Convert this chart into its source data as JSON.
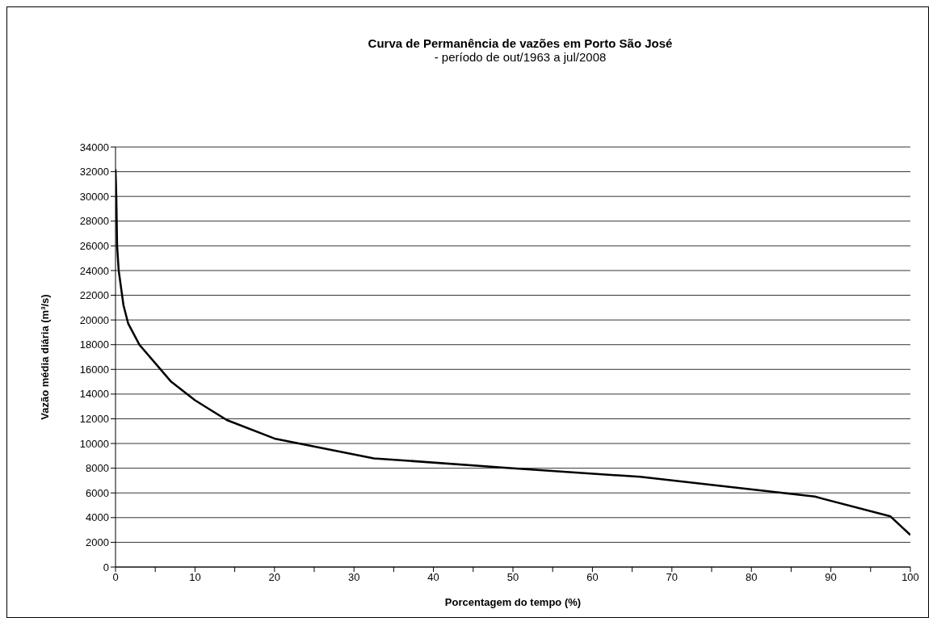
{
  "chart_data": {
    "type": "line",
    "title": "Curva de Permanência de vazões em Porto São José",
    "subtitle": "- período de out/1963 a jul/2008",
    "xlabel": "Porcentagem do tempo (%)",
    "ylabel": "Vazão média diária (m³/s)",
    "series": [
      {
        "color": "#000000",
        "x": [
          0,
          0.1,
          0.2,
          0.4,
          1,
          1.6,
          3,
          5,
          7,
          10,
          14,
          20,
          32.5,
          50,
          66,
          88,
          97.5,
          100
        ],
        "values": [
          32200,
          30000,
          26000,
          24000,
          21200,
          19700,
          18000,
          16500,
          15000,
          13500,
          11900,
          10400,
          8800,
          8000,
          7300,
          5700,
          4100,
          2600
        ]
      }
    ],
    "xlim": [
      0,
      100
    ],
    "xticks": [
      0,
      {
        "value": 5,
        "label": null
      },
      10,
      {
        "value": 15,
        "label": null
      },
      20,
      {
        "value": 25,
        "label": null
      },
      30,
      {
        "value": 35,
        "label": null
      },
      40,
      {
        "value": 45,
        "label": null
      },
      50,
      {
        "value": 55,
        "label": null
      },
      60,
      {
        "value": 65,
        "label": null
      },
      70,
      {
        "value": 75,
        "label": null
      },
      80,
      {
        "value": 85,
        "label": null
      },
      90,
      {
        "value": 95,
        "label": null
      },
      100
    ],
    "ylim": [
      0,
      34000
    ],
    "yticks": [
      0,
      2000,
      4000,
      6000,
      8000,
      10000,
      12000,
      14000,
      16000,
      18000,
      20000,
      22000,
      24000,
      26000,
      28000,
      30000,
      32000,
      34000
    ],
    "grid": "y",
    "legend": false,
    "marker": "none",
    "line_style": "solid"
  }
}
